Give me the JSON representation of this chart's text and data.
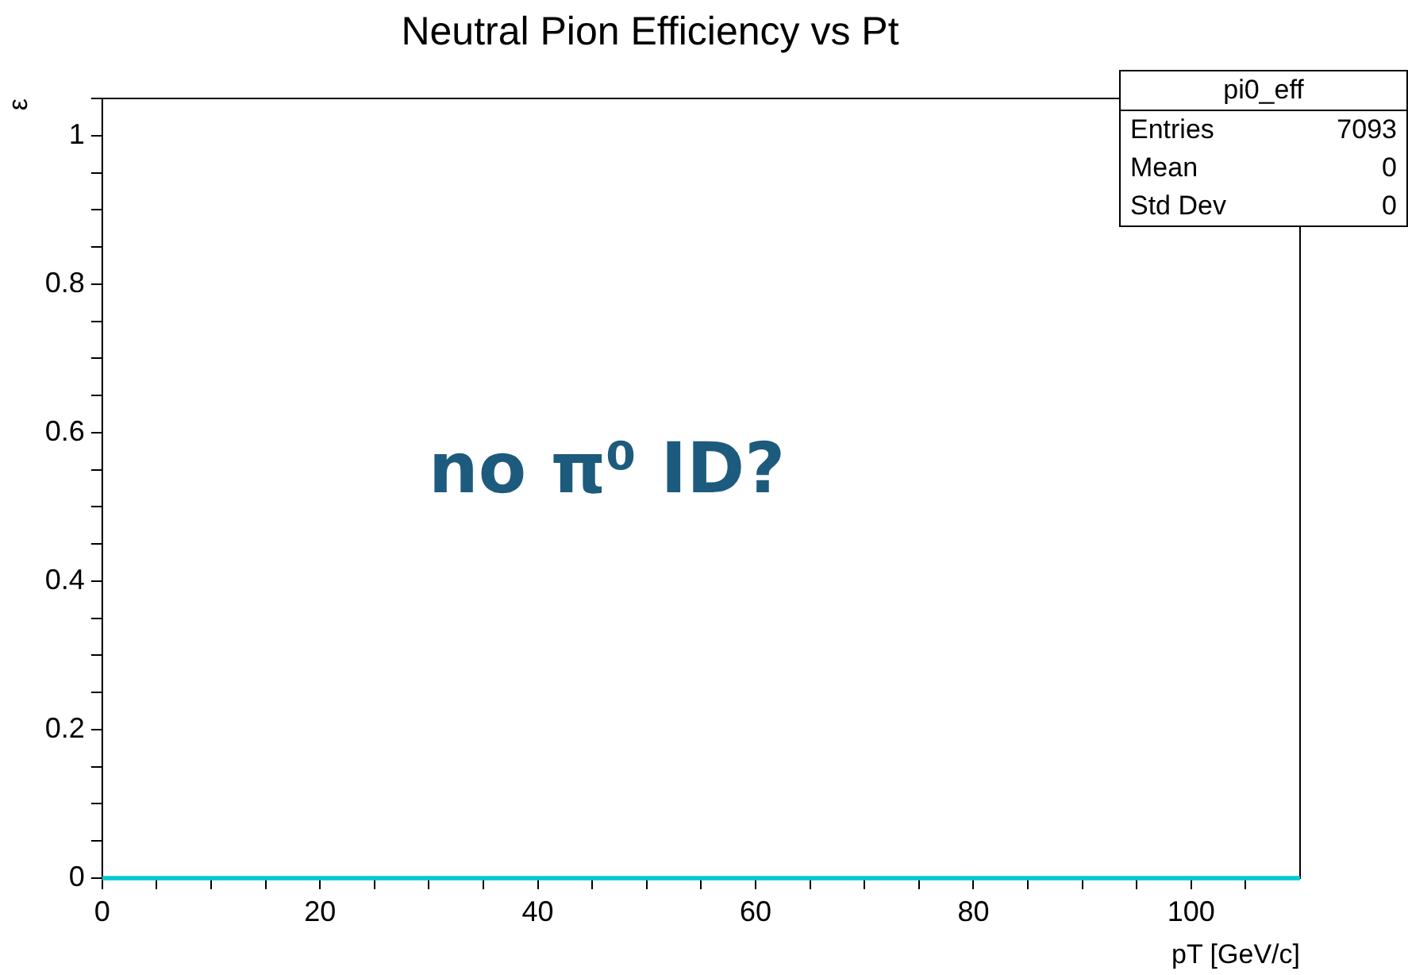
{
  "chart_data": {
    "type": "step",
    "title": "Neutral Pion Efficiency vs Pt",
    "xlabel": "pT [GeV/c]",
    "ylabel": "ε",
    "x": [
      0,
      110
    ],
    "series": [
      {
        "color": "#00c8d2",
        "values": [
          0,
          0
        ]
      }
    ],
    "xlim": [
      0,
      110
    ],
    "xticks": [
      0,
      {
        "value": 5,
        "label": null
      },
      {
        "value": 10,
        "label": null
      },
      {
        "value": 15,
        "label": null
      },
      20,
      {
        "value": 25,
        "label": null
      },
      {
        "value": 30,
        "label": null
      },
      {
        "value": 35,
        "label": null
      },
      40,
      {
        "value": 45,
        "label": null
      },
      {
        "value": 50,
        "label": null
      },
      {
        "value": 55,
        "label": null
      },
      60,
      {
        "value": 65,
        "label": null
      },
      {
        "value": 70,
        "label": null
      },
      {
        "value": 75,
        "label": null
      },
      80,
      {
        "value": 85,
        "label": null
      },
      {
        "value": 90,
        "label": null
      },
      {
        "value": 95,
        "label": null
      },
      100,
      {
        "value": 105,
        "label": null
      }
    ],
    "ylim": [
      0,
      1.05
    ],
    "yticks": [
      0,
      {
        "value": 0.05,
        "label": null
      },
      {
        "value": 0.1,
        "label": null
      },
      {
        "value": 0.15,
        "label": null
      },
      0.2,
      {
        "value": 0.25,
        "label": null
      },
      {
        "value": 0.3,
        "label": null
      },
      {
        "value": 0.35,
        "label": null
      },
      0.4,
      {
        "value": 0.45,
        "label": null
      },
      {
        "value": 0.5,
        "label": null
      },
      {
        "value": 0.55,
        "label": null
      },
      0.6,
      {
        "value": 0.65,
        "label": null
      },
      {
        "value": 0.7,
        "label": null
      },
      {
        "value": 0.75,
        "label": null
      },
      0.8,
      {
        "value": 0.85,
        "label": null
      },
      {
        "value": 0.9,
        "label": null
      },
      {
        "value": 0.95,
        "label": null
      },
      1,
      {
        "value": 1.05,
        "label": null
      }
    ],
    "grid": false,
    "legend": false,
    "marker": "none",
    "line_style": "solid",
    "annotations": [
      "pi0_eff",
      "Entries",
      "7093",
      "Mean",
      "0",
      "Std Dev",
      "0",
      "no π⁰ ID?"
    ]
  }
}
